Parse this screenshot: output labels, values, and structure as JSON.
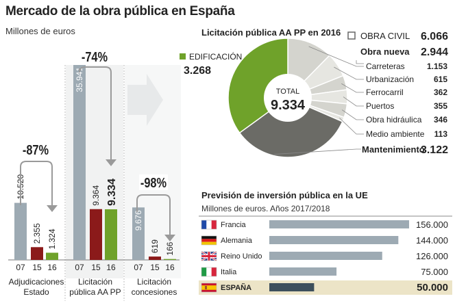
{
  "title": "Mercado de la obra pública en España",
  "subtitle": "Millones de euros",
  "colors": {
    "gray": "#9daab3",
    "red": "#8b1a1a",
    "green": "#6fa22a",
    "dark_gray": "#6b6b66",
    "light_gray": "#d6d6d0",
    "arrow_gray": "#9a9a9a",
    "espana_bar": "#3d4f5c",
    "espana_row": "#ece4c7"
  },
  "chart_data": [
    {
      "type": "bar",
      "title": "Mercado de la obra pública en España",
      "ylabel": "Millones de euros",
      "groups": [
        {
          "label": "Adjudicaciones Estado",
          "label_lines": [
            "Adjudicaciones",
            "Estado"
          ],
          "change": "-87%",
          "categories": [
            "07",
            "15",
            "16"
          ],
          "values": [
            10520,
            2355,
            1324
          ],
          "value_labels": [
            "10.520",
            "2.355",
            "1.324"
          ]
        },
        {
          "label": "Licitación pública AA PP",
          "label_lines": [
            "Licitación",
            "pública AA PP"
          ],
          "change": "-74%",
          "categories": [
            "07",
            "15",
            "16"
          ],
          "values": [
            35941,
            9364,
            9334
          ],
          "value_labels": [
            "35.941",
            "9.364",
            "9.334"
          ]
        },
        {
          "label": "Licitación concesiones",
          "label_lines": [
            "Licitación",
            "concesiones"
          ],
          "change": "-98%",
          "categories": [
            "07",
            "15",
            "16"
          ],
          "values": [
            9676,
            619,
            166
          ],
          "value_labels": [
            "9.676",
            "619",
            "166"
          ]
        }
      ]
    },
    {
      "type": "pie",
      "title": "Licitación pública AA PP en 2016",
      "total_label": "TOTAL",
      "total_value": "9.334",
      "edificacion": {
        "label": "EDIFICACIÓN",
        "value": 3268,
        "value_label": "3.268"
      },
      "obra_civil": {
        "label": "OBRA CIVIL",
        "value": 6066,
        "value_label": "6.066"
      },
      "obra_nueva": {
        "label": "Obra nueva",
        "value": 2944,
        "value_label": "2.944"
      },
      "mantenimiento": {
        "label": "Mantenimiento",
        "value": 3122,
        "value_label": "3.122"
      },
      "breakdown": [
        {
          "label": "Carreteras",
          "value": 1153,
          "value_label": "1.153"
        },
        {
          "label": "Urbanización",
          "value": 615,
          "value_label": "615"
        },
        {
          "label": "Ferrocarril",
          "value": 362,
          "value_label": "362"
        },
        {
          "label": "Puertos",
          "value": 355,
          "value_label": "355"
        },
        {
          "label": "Obra hidráulica",
          "value": 346,
          "value_label": "346"
        },
        {
          "label": "Medio ambiente",
          "value": 113,
          "value_label": "113"
        }
      ]
    },
    {
      "type": "bar",
      "orientation": "horizontal",
      "title": "Previsión de inversión pública en la UE",
      "subtitle": "Millones de euros. Años 2017/2018",
      "xlim": [
        0,
        156000
      ],
      "rows": [
        {
          "country": "Francia",
          "flag": "flag-france",
          "value": 156000,
          "value_label": "156.000"
        },
        {
          "country": "Alemania",
          "flag": "flag-germany",
          "value": 144000,
          "value_label": "144.000"
        },
        {
          "country": "Reino Unido",
          "flag": "flag-uk",
          "value": 126000,
          "value_label": "126.000"
        },
        {
          "country": "Italia",
          "flag": "flag-italy",
          "value": 75000,
          "value_label": "75.000"
        },
        {
          "country": "ESPAÑA",
          "flag": "flag-spain",
          "value": 50000,
          "value_label": "50.000",
          "highlight": true
        }
      ]
    }
  ]
}
